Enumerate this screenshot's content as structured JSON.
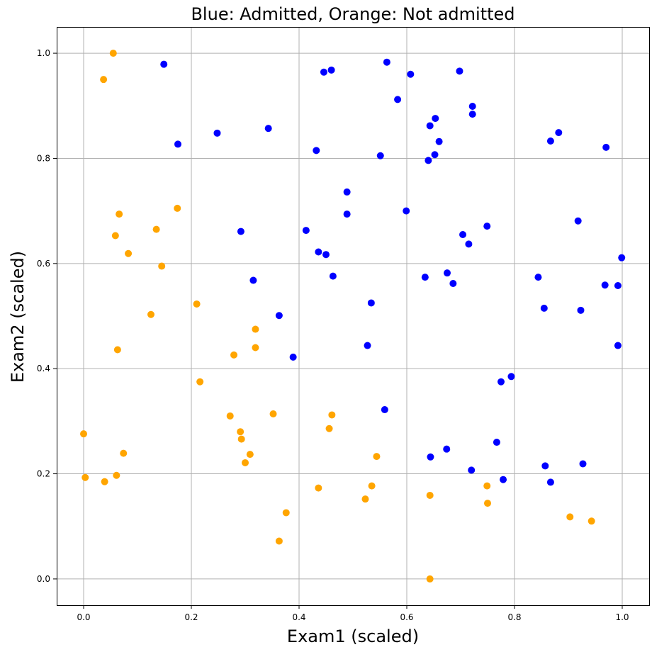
{
  "chart_data": {
    "type": "scatter",
    "title": "Blue: Admitted, Orange: Not admitted",
    "xlabel": "Exam1 (scaled)",
    "ylabel": "Exam2 (scaled)",
    "xlim": [
      -0.05,
      1.05
    ],
    "ylim": [
      -0.05,
      1.05
    ],
    "xticks": [
      "0.0",
      "0.2",
      "0.4",
      "0.6",
      "0.8",
      "1.0"
    ],
    "yticks": [
      "0.0",
      "0.2",
      "0.4",
      "0.6",
      "0.8",
      "1.0"
    ],
    "grid": true,
    "legend": "none",
    "colors": {
      "admitted": "#0000ff",
      "not_admitted": "#ffa500"
    },
    "series": [
      {
        "color": "#0000ff",
        "points": [
          [
            0.149,
            0.979
          ],
          [
            0.446,
            0.964
          ],
          [
            0.46,
            0.968
          ],
          [
            0.563,
            0.983
          ],
          [
            0.607,
            0.96
          ],
          [
            0.698,
            0.966
          ],
          [
            0.583,
            0.912
          ],
          [
            0.722,
            0.899
          ],
          [
            0.722,
            0.884
          ],
          [
            0.653,
            0.876
          ],
          [
            0.643,
            0.862
          ],
          [
            0.66,
            0.832
          ],
          [
            0.652,
            0.807
          ],
          [
            0.64,
            0.796
          ],
          [
            0.882,
            0.849
          ],
          [
            0.867,
            0.833
          ],
          [
            0.97,
            0.821
          ],
          [
            0.248,
            0.848
          ],
          [
            0.343,
            0.857
          ],
          [
            0.175,
            0.827
          ],
          [
            0.432,
            0.815
          ],
          [
            0.551,
            0.805
          ],
          [
            0.489,
            0.736
          ],
          [
            0.489,
            0.694
          ],
          [
            0.599,
            0.7
          ],
          [
            0.292,
            0.661
          ],
          [
            0.413,
            0.663
          ],
          [
            0.704,
            0.655
          ],
          [
            0.715,
            0.637
          ],
          [
            0.749,
            0.671
          ],
          [
            0.918,
            0.681
          ],
          [
            0.436,
            0.622
          ],
          [
            0.45,
            0.617
          ],
          [
            0.463,
            0.576
          ],
          [
            0.315,
            0.568
          ],
          [
            0.634,
            0.574
          ],
          [
            0.675,
            0.582
          ],
          [
            0.686,
            0.562
          ],
          [
            0.844,
            0.574
          ],
          [
            0.999,
            0.611
          ],
          [
            0.968,
            0.559
          ],
          [
            0.992,
            0.558
          ],
          [
            0.363,
            0.501
          ],
          [
            0.534,
            0.525
          ],
          [
            0.855,
            0.515
          ],
          [
            0.923,
            0.511
          ],
          [
            0.527,
            0.444
          ],
          [
            0.389,
            0.422
          ],
          [
            0.992,
            0.444
          ],
          [
            0.775,
            0.375
          ],
          [
            0.794,
            0.385
          ],
          [
            0.559,
            0.322
          ],
          [
            0.644,
            0.232
          ],
          [
            0.674,
            0.247
          ],
          [
            0.767,
            0.26
          ],
          [
            0.72,
            0.207
          ],
          [
            0.779,
            0.189
          ],
          [
            0.857,
            0.215
          ],
          [
            0.927,
            0.219
          ],
          [
            0.867,
            0.184
          ]
        ]
      },
      {
        "color": "#ffa500",
        "points": [
          [
            0.055,
            1.0
          ],
          [
            0.037,
            0.95
          ],
          [
            0.174,
            0.705
          ],
          [
            0.066,
            0.694
          ],
          [
            0.135,
            0.665
          ],
          [
            0.059,
            0.653
          ],
          [
            0.083,
            0.619
          ],
          [
            0.145,
            0.595
          ],
          [
            0.21,
            0.523
          ],
          [
            0.125,
            0.503
          ],
          [
            0.063,
            0.436
          ],
          [
            0.319,
            0.475
          ],
          [
            0.319,
            0.44
          ],
          [
            0.279,
            0.426
          ],
          [
            0.216,
            0.375
          ],
          [
            0.0,
            0.276
          ],
          [
            0.272,
            0.31
          ],
          [
            0.352,
            0.314
          ],
          [
            0.461,
            0.312
          ],
          [
            0.456,
            0.286
          ],
          [
            0.291,
            0.28
          ],
          [
            0.293,
            0.266
          ],
          [
            0.309,
            0.237
          ],
          [
            0.3,
            0.221
          ],
          [
            0.074,
            0.239
          ],
          [
            0.003,
            0.193
          ],
          [
            0.061,
            0.197
          ],
          [
            0.039,
            0.185
          ],
          [
            0.544,
            0.233
          ],
          [
            0.436,
            0.173
          ],
          [
            0.535,
            0.177
          ],
          [
            0.523,
            0.152
          ],
          [
            0.643,
            0.159
          ],
          [
            0.749,
            0.177
          ],
          [
            0.75,
            0.144
          ],
          [
            0.376,
            0.126
          ],
          [
            0.363,
            0.072
          ],
          [
            0.903,
            0.118
          ],
          [
            0.943,
            0.11
          ],
          [
            0.643,
            0.0
          ]
        ]
      }
    ]
  }
}
